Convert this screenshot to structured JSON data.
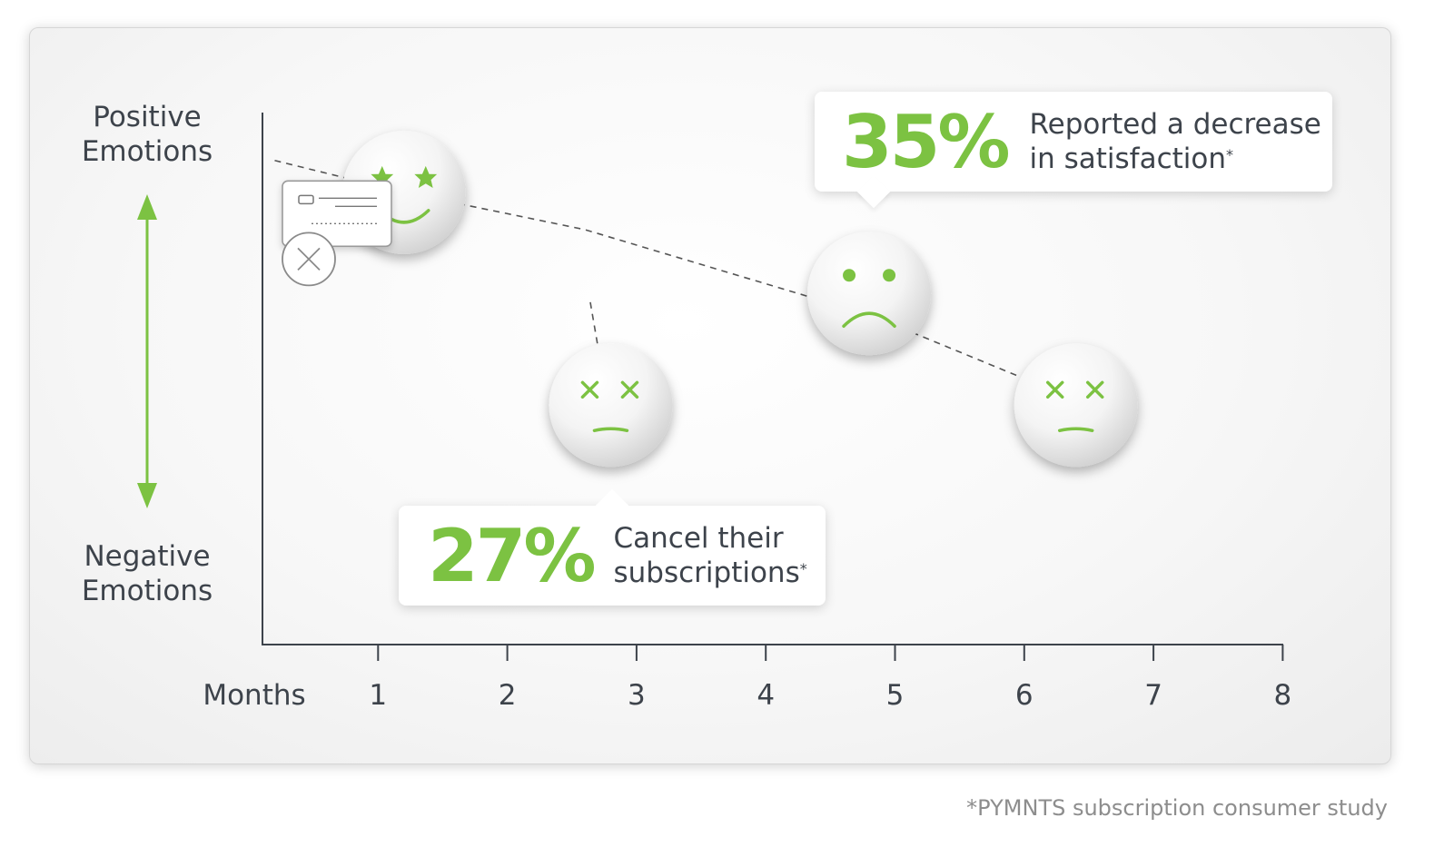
{
  "chart_data": {
    "type": "scatter",
    "x_axis": {
      "label": "Months",
      "ticks": [
        1,
        2,
        3,
        4,
        5,
        6,
        7,
        8
      ],
      "range": [
        0,
        8
      ]
    },
    "y_axis": {
      "top_label": "Positive Emotions",
      "bottom_label": "Negative Emotions",
      "numeric_scale_shown": false
    },
    "trend": {
      "style": "dashed",
      "points": [
        {
          "x": 0.2,
          "y": 0.91
        },
        {
          "x": 1.2,
          "y": 0.85
        },
        {
          "x": 2.6,
          "y": 0.78
        },
        {
          "x": 4.8,
          "y": 0.62
        },
        {
          "x": 6.8,
          "y": 0.42
        }
      ]
    },
    "branch": {
      "style": "dashed",
      "from": {
        "x": 2.6,
        "y": 0.78
      },
      "to": {
        "x": 2.8,
        "y": 0.52
      }
    },
    "markers": [
      {
        "month": 1.2,
        "level": 0.85,
        "face": "happy-star-eyes"
      },
      {
        "month": 2.8,
        "level": 0.45,
        "face": "cross-eyes-frown"
      },
      {
        "month": 4.8,
        "level": 0.66,
        "face": "sad"
      },
      {
        "month": 6.4,
        "level": 0.45,
        "face": "cross-eyes-frown"
      }
    ],
    "event_icon": {
      "month": 2.6,
      "level": 0.81,
      "icon": "credit-card-cancel-icon"
    },
    "annotations": [
      {
        "value": "35%",
        "text": "Reported a decrease",
        "text2": "in satisfaction",
        "mark": "*"
      },
      {
        "value": "27%",
        "text": "Cancel their",
        "text2": "subscriptions",
        "mark": "*"
      }
    ],
    "accent_color": "#7cc242",
    "text_color": "#3d434b"
  },
  "footnote": "*PYMNTS subscription consumer study"
}
